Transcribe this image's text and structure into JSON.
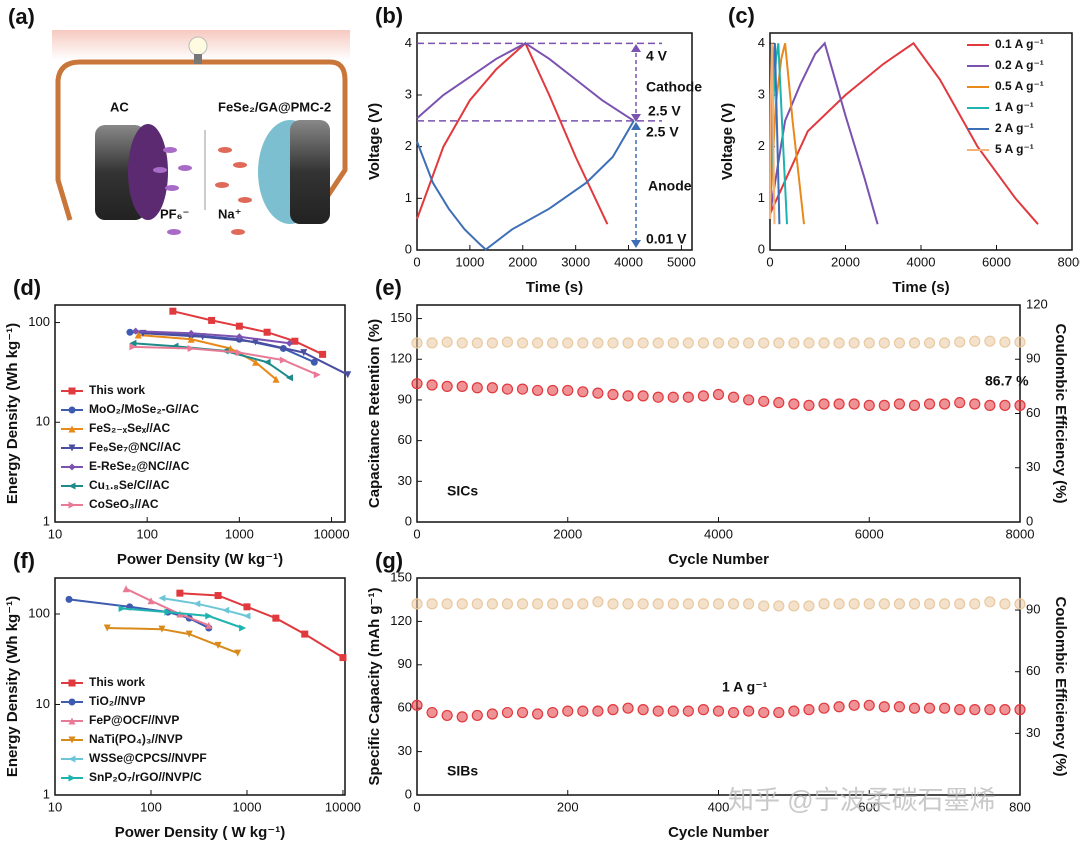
{
  "schematic": {
    "panel": "(a)",
    "labels": {
      "anode": "AC",
      "cathode": "FeSe₂/GA@PMC-2",
      "anion": "PF₆⁻",
      "cation": "Na⁺"
    }
  },
  "chart_data": [
    {
      "type": "line",
      "panel": "(b)",
      "xlabel": "Time (s)",
      "ylabel": "Voltage (V)",
      "xlim": [
        0,
        5200
      ],
      "xticks": [
        0,
        1000,
        2000,
        3000,
        4000,
        5000
      ],
      "ylim": [
        0,
        4.2
      ],
      "yticks": [
        0,
        1,
        2,
        3,
        4
      ],
      "reference_lines": [
        4,
        2.5
      ],
      "annotations": [
        "4 V",
        "Cathode",
        "2.5 V",
        "2.5 V",
        "Anode",
        "0.01 V"
      ],
      "series": [
        {
          "color": "#e0393e",
          "x": [
            0,
            500,
            1000,
            1500,
            2050,
            2500,
            3000,
            3600
          ],
          "values": [
            0.6,
            2.0,
            2.9,
            3.5,
            4.0,
            3.0,
            1.8,
            0.5
          ]
        },
        {
          "color": "#7b52b0",
          "x": [
            0,
            500,
            1000,
            1500,
            2050,
            2500,
            3000,
            3500,
            4100
          ],
          "values": [
            2.55,
            3.0,
            3.35,
            3.7,
            4.0,
            3.7,
            3.3,
            2.9,
            2.5
          ]
        },
        {
          "color": "#3d6fb6",
          "x": [
            0,
            300,
            600,
            900,
            1200,
            1300,
            1800,
            2500,
            3200,
            3700,
            4100
          ],
          "values": [
            2.1,
            1.3,
            0.8,
            0.4,
            0.1,
            0.01,
            0.4,
            0.8,
            1.3,
            1.8,
            2.5
          ]
        }
      ]
    },
    {
      "type": "line",
      "panel": "(c)",
      "xlabel": "Time (s)",
      "ylabel": "Voltage (V)",
      "legend": "upper right",
      "xlim": [
        0,
        8000
      ],
      "xticks": [
        0,
        2000,
        4000,
        6000,
        8000
      ],
      "ylim": [
        0,
        4.2
      ],
      "yticks": [
        0,
        1,
        2,
        3,
        4
      ],
      "series": [
        {
          "name": "0.1 A g⁻¹",
          "color": "#e0393e",
          "x": [
            0,
            1000,
            2000,
            3000,
            3800,
            4500,
            5500,
            6500,
            7100
          ],
          "values": [
            0.7,
            2.3,
            3.0,
            3.6,
            4.0,
            3.3,
            2.0,
            1.0,
            0.5
          ]
        },
        {
          "name": "0.2 A g⁻¹",
          "color": "#7b52b0",
          "x": [
            0,
            400,
            800,
            1200,
            1450,
            2000,
            2500,
            2850
          ],
          "values": [
            0.7,
            2.5,
            3.2,
            3.8,
            4.0,
            2.6,
            1.4,
            0.5
          ]
        },
        {
          "name": "0.5 A g⁻¹",
          "color": "#e8891a",
          "x": [
            0,
            150,
            300,
            400,
            600,
            900
          ],
          "values": [
            0.7,
            2.8,
            3.7,
            4.0,
            2.5,
            0.5
          ]
        },
        {
          "name": "1 A g⁻¹",
          "color": "#1fb3b0",
          "x": [
            0,
            80,
            160,
            220,
            350,
            450
          ],
          "values": [
            0.6,
            2.8,
            3.7,
            4.0,
            2.0,
            0.5
          ]
        },
        {
          "name": "2 A g⁻¹",
          "color": "#3d6fb6",
          "x": [
            0,
            50,
            100,
            130,
            200,
            250
          ],
          "values": [
            0.6,
            2.8,
            3.7,
            4.0,
            2.0,
            0.5
          ]
        },
        {
          "name": "5 A g⁻¹",
          "color": "#f2b27a",
          "x": [
            0,
            20,
            40,
            60,
            90,
            120
          ],
          "values": [
            0.6,
            3.0,
            3.7,
            4.0,
            2.0,
            0.5
          ]
        }
      ]
    },
    {
      "type": "line",
      "panel": "(d)",
      "xlabel": "Power Density (W kg⁻¹)",
      "ylabel": "Energy Density (Wh kg⁻¹)",
      "legend": "lower left",
      "xlog": true,
      "ylog": true,
      "xlim": [
        10,
        14000
      ],
      "xticks": [
        10,
        100,
        1000,
        10000
      ],
      "ylim": [
        1,
        150
      ],
      "yticks": [
        1,
        10,
        100
      ],
      "series": [
        {
          "name": "This work",
          "color": "#e0393e",
          "marker": "square",
          "x": [
            190,
            500,
            1000,
            2000,
            4000,
            8000
          ],
          "values": [
            130,
            105,
            92,
            80,
            65,
            48
          ]
        },
        {
          "name": "MoO₂/MoSe₂-G//AC",
          "color": "#3d5bb0",
          "marker": "circle",
          "x": [
            65,
            300,
            1000,
            3000,
            6500
          ],
          "values": [
            80,
            75,
            68,
            55,
            40
          ]
        },
        {
          "name": "FeS₂₋ₓSeₓ//AC",
          "color": "#e8891a",
          "marker": "triangle-up",
          "x": [
            80,
            300,
            800,
            1500,
            2500
          ],
          "values": [
            75,
            68,
            55,
            40,
            27
          ]
        },
        {
          "name": "Fe₉Se₇@NC//AC",
          "color": "#4a4ea0",
          "marker": "triangle-down",
          "x": [
            90,
            400,
            1500,
            5000,
            15000
          ],
          "values": [
            78,
            72,
            64,
            50,
            30
          ]
        },
        {
          "name": "E-ReSe₂@NC//AC",
          "color": "#7b52b0",
          "marker": "diamond",
          "x": [
            75,
            300,
            1000,
            3500
          ],
          "values": [
            82,
            78,
            72,
            62
          ]
        },
        {
          "name": "Cu₁.₈Se/C//AC",
          "color": "#1f8a8a",
          "marker": "triangle-left",
          "x": [
            70,
            200,
            700,
            2000,
            3500
          ],
          "values": [
            62,
            58,
            52,
            40,
            28
          ]
        },
        {
          "name": "CoSeO₃//AC",
          "color": "#e87a95",
          "marker": "triangle-right",
          "x": [
            70,
            300,
            1000,
            3000,
            7000
          ],
          "values": [
            57,
            55,
            50,
            42,
            30
          ]
        }
      ]
    },
    {
      "type": "scatter",
      "panel": "(e)",
      "xlabel": "Cycle Number",
      "ylabel": "Capacitance Retention (%)",
      "y2label": "Coulombic Efficiency (%)",
      "xlim": [
        0,
        8000
      ],
      "xticks": [
        0,
        2000,
        4000,
        6000,
        8000
      ],
      "ylim": [
        0,
        160
      ],
      "yticks": [
        0,
        30,
        60,
        90,
        120,
        150
      ],
      "y2lim": [
        0,
        120
      ],
      "y2ticks": [
        0,
        30,
        60,
        90,
        120
      ],
      "annotations": [
        "86.7 %",
        "SICs"
      ],
      "x": [
        0,
        200,
        400,
        600,
        800,
        1000,
        1200,
        1400,
        1600,
        1800,
        2000,
        2200,
        2400,
        2600,
        2800,
        3000,
        3200,
        3400,
        3600,
        3800,
        4000,
        4200,
        4400,
        4600,
        4800,
        5000,
        5200,
        5400,
        5600,
        5800,
        6000,
        6200,
        6400,
        6600,
        6800,
        7000,
        7200,
        7400,
        7600,
        7800,
        8000
      ],
      "series": [
        {
          "color": "#e0393e",
          "values": [
            102,
            101,
            100,
            100,
            99,
            99,
            98,
            98,
            97,
            97,
            97,
            96,
            95,
            94,
            93,
            93,
            92,
            92,
            92,
            93,
            94,
            92,
            90,
            89,
            88,
            87,
            86,
            87,
            87,
            87,
            86,
            86,
            87,
            86,
            87,
            87,
            88,
            87,
            86,
            86,
            86
          ]
        },
        {
          "color": "#e9c9a0",
          "axis": "y2",
          "values": [
            99,
            99,
            99.5,
            99,
            99,
            99,
            99.5,
            99,
            99,
            99,
            99,
            99,
            99,
            99,
            99,
            99,
            99,
            99,
            99,
            99,
            99,
            99,
            99,
            99,
            99,
            99,
            99,
            99,
            99,
            99,
            99,
            99,
            99,
            99,
            99,
            99,
            99.5,
            100,
            100,
            99.5,
            99.5
          ]
        }
      ]
    },
    {
      "type": "line",
      "panel": "(f)",
      "xlabel": "Power Density ( W kg⁻¹)",
      "ylabel": "Energy Density (Wh kg⁻¹)",
      "legend": "lower left",
      "xlog": true,
      "ylog": true,
      "xlim": [
        10,
        10500
      ],
      "xticks": [
        10,
        100,
        1000,
        10000
      ],
      "ylim": [
        1,
        250
      ],
      "yticks": [
        1,
        10,
        100
      ],
      "series": [
        {
          "name": "This work",
          "color": "#e0393e",
          "marker": "square",
          "x": [
            200,
            500,
            1000,
            2000,
            4000,
            10000
          ],
          "values": [
            170,
            160,
            120,
            90,
            60,
            33
          ]
        },
        {
          "name": "TiO₂//NVP",
          "color": "#3d5bb0",
          "marker": "circle",
          "x": [
            14,
            60,
            150,
            250,
            400
          ],
          "values": [
            145,
            120,
            105,
            90,
            70
          ]
        },
        {
          "name": "FeP@OCF//NVP",
          "color": "#e87a95",
          "marker": "triangle-up",
          "x": [
            55,
            100,
            200,
            400
          ],
          "values": [
            190,
            140,
            100,
            75
          ]
        },
        {
          "name": "NaTi(PO₄)₃//NVP",
          "color": "#d88a1a",
          "marker": "triangle-down",
          "x": [
            35,
            130,
            250,
            500,
            800
          ],
          "values": [
            70,
            68,
            60,
            45,
            37
          ]
        },
        {
          "name": "WSSe@CPCS//NVPF",
          "color": "#6cc6d8",
          "marker": "triangle-left",
          "x": [
            130,
            300,
            600,
            1000
          ],
          "values": [
            150,
            130,
            110,
            95
          ]
        },
        {
          "name": "SnP₂O₇/rGO//NVP/C",
          "color": "#1fb3b0",
          "marker": "triangle-right",
          "x": [
            50,
            150,
            400,
            900
          ],
          "values": [
            115,
            105,
            95,
            70
          ]
        }
      ]
    },
    {
      "type": "scatter",
      "panel": "(g)",
      "xlabel": "Cycle Number",
      "ylabel": "Specific Capacity (mAh g⁻¹)",
      "y2label": "Coulombic Efficiency (%)",
      "xlim": [
        0,
        800
      ],
      "xticks": [
        0,
        200,
        400,
        600,
        800
      ],
      "ylim": [
        0,
        150
      ],
      "yticks": [
        0,
        30,
        60,
        90,
        120,
        150
      ],
      "y2lim": [
        0,
        105.6
      ],
      "y2ticks": [
        30,
        60,
        90
      ],
      "annotations": [
        "1 A g⁻¹",
        "SIBs"
      ],
      "x": [
        0,
        20,
        40,
        60,
        80,
        100,
        120,
        140,
        160,
        180,
        200,
        220,
        240,
        260,
        280,
        300,
        320,
        340,
        360,
        380,
        400,
        420,
        440,
        460,
        480,
        500,
        520,
        540,
        560,
        580,
        600,
        620,
        640,
        660,
        680,
        700,
        720,
        740,
        760,
        780,
        800
      ],
      "series": [
        {
          "color": "#e0393e",
          "values": [
            62,
            57,
            55,
            54,
            55,
            56,
            57,
            57,
            56,
            57,
            58,
            58,
            58,
            59,
            60,
            59,
            58,
            58,
            58,
            59,
            58,
            57,
            58,
            57,
            57,
            58,
            59,
            60,
            61,
            62,
            62,
            61,
            61,
            60,
            60,
            60,
            59,
            59,
            59,
            59,
            59
          ]
        },
        {
          "color": "#e9c9a0",
          "axis": "y2",
          "values": [
            93,
            93,
            93,
            93,
            93,
            93,
            93,
            93,
            93,
            93,
            93,
            93,
            94,
            93,
            93,
            93,
            93,
            93,
            93,
            93,
            93,
            93,
            93,
            92,
            92,
            92,
            92,
            93,
            93,
            93,
            93,
            93,
            93,
            93,
            93,
            93,
            93,
            93,
            94,
            93,
            93
          ]
        }
      ]
    }
  ],
  "watermark": "知乎 @宁波柔碳石墨烯"
}
